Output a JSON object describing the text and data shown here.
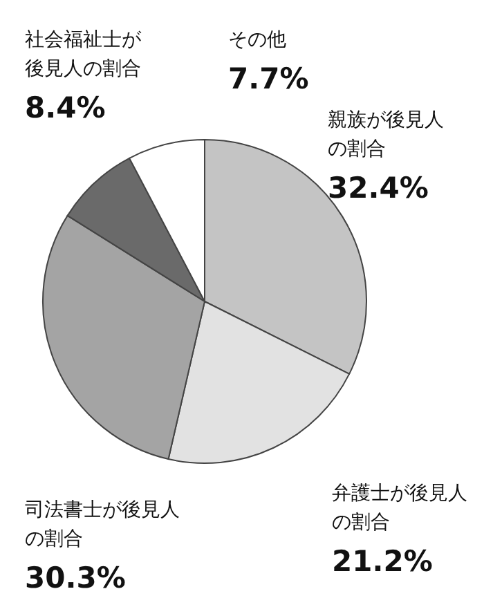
{
  "chart_data": {
    "type": "pie",
    "categories": [
      "親族が後見人の割合",
      "弁護士が後見人の割合",
      "司法書士が後見人の割合",
      "社会福祉士が後見人の割合",
      "その他"
    ],
    "values": [
      32.4,
      21.2,
      30.3,
      8.4,
      7.7
    ],
    "value_labels": [
      "32.4%",
      "21.2%",
      "30.3%",
      "8.4%",
      "7.7%"
    ],
    "colors": [
      "#c4c4c4",
      "#e2e2e2",
      "#a4a4a4",
      "#6a6a6a",
      "#ffffff"
    ]
  }
}
